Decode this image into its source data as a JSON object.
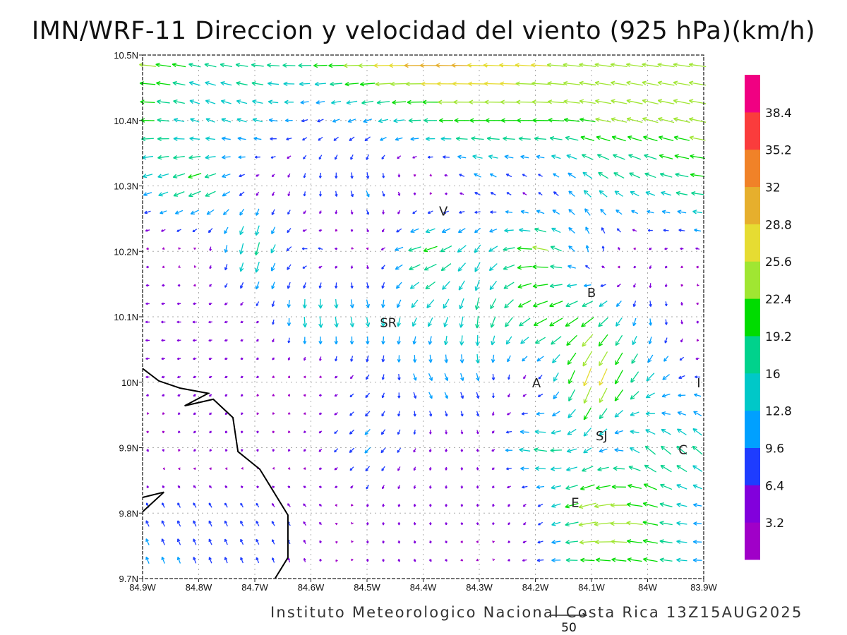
{
  "title": "IMN/WRF-11 Direccion y velocidad del viento (925 hPa)(km/h)",
  "footer": "Instituto Meteorologico Nacional Costa Rica 13Z15AUG2025",
  "chart_data": {
    "type": "vector-field",
    "title": "IMN/WRF-11 Direccion y velocidad del viento (925 hPa)(km/h)",
    "units": "km/h",
    "xlim": [
      -84.9,
      -83.9
    ],
    "ylim": [
      9.7,
      10.5
    ],
    "grid": true,
    "x_ticks": [
      -84.9,
      -84.8,
      -84.7,
      -84.6,
      -84.5,
      -84.4,
      -84.3,
      -84.2,
      -84.1,
      -84.0,
      -83.9
    ],
    "x_tick_labels": [
      "84.9W",
      "84.8W",
      "84.7W",
      "84.6W",
      "84.5W",
      "84.4W",
      "84.3W",
      "84.2W",
      "84.1W",
      "84W",
      "83.9W"
    ],
    "y_ticks": [
      9.7,
      9.8,
      9.9,
      10.0,
      10.1,
      10.2,
      10.3,
      10.4,
      10.5
    ],
    "y_tick_labels": [
      "9.7N",
      "9.8N",
      "9.9N",
      "10N",
      "10.1N",
      "10.2N",
      "10.3N",
      "10.4N",
      "10.5N"
    ],
    "vector_spacing_deg": 0.028,
    "reference_vector": {
      "value": 50,
      "label": "50"
    },
    "colorbar": {
      "placement": "right",
      "bounds": [
        3.2,
        6.4,
        9.6,
        12.8,
        16,
        19.2,
        22.4,
        25.6,
        28.8,
        32,
        35.2,
        38.4
      ],
      "labels": [
        "3.2",
        "6.4",
        "9.6",
        "12.8",
        "16",
        "19.2",
        "22.4",
        "25.6",
        "28.8",
        "32",
        "35.2",
        "38.4"
      ],
      "colors": [
        "#a000c8",
        "#8200dc",
        "#1e3cff",
        "#00a0ff",
        "#00c8c8",
        "#00d28c",
        "#00dc00",
        "#a0e632",
        "#e6dc32",
        "#e6af2d",
        "#f08228",
        "#fa3c3c",
        "#f00082"
      ]
    },
    "wind_grid": {
      "lons": [
        -84.9,
        -84.8,
        -84.7,
        -84.6,
        -84.5,
        -84.4,
        -84.3,
        -84.2,
        -84.1,
        -84.0,
        -83.9
      ],
      "lats": [
        10.5,
        10.4,
        10.3,
        10.2,
        10.1,
        10.0,
        9.9,
        9.8,
        9.7
      ],
      "u": [
        [
          -25,
          -17,
          -18,
          -20,
          -28,
          -32,
          -30,
          -27,
          -24,
          -24,
          -24
        ],
        [
          -20,
          -12,
          -14,
          -8,
          -12,
          -18,
          -22,
          -22,
          -22,
          -22,
          -24
        ],
        [
          -12,
          -20,
          -3,
          0,
          4,
          3,
          -8,
          -2,
          -12,
          -14,
          -20
        ],
        [
          -3,
          1,
          -5,
          -8,
          1,
          -22,
          -8,
          -25,
          0,
          -3,
          -5
        ],
        [
          -6,
          -6,
          -3,
          2,
          3,
          -8,
          -2,
          -20,
          -18,
          2,
          2
        ],
        [
          -5,
          -4,
          -3,
          -3,
          -5,
          6,
          3,
          -3,
          -10,
          -12,
          -8
        ],
        [
          3,
          -3,
          1,
          -3,
          -8,
          -2,
          1,
          -20,
          -10,
          -14,
          -14
        ],
        [
          -4,
          -4,
          -4,
          -4,
          0,
          0,
          0,
          -3,
          -28,
          -22,
          -10
        ],
        [
          -4,
          -3,
          -3,
          0,
          0,
          3,
          3,
          -10,
          -18,
          -20,
          -12
        ]
      ],
      "v": [
        [
          3,
          4,
          2,
          0,
          0,
          0,
          1,
          2,
          3,
          3,
          3
        ],
        [
          0,
          5,
          4,
          -3,
          -4,
          0,
          0,
          0,
          4,
          6,
          5
        ],
        [
          -4,
          -8,
          -3,
          -8,
          -10,
          -2,
          6,
          3,
          10,
          6,
          2
        ],
        [
          0,
          -2,
          -20,
          3,
          -2,
          -6,
          -12,
          4,
          10,
          -3,
          2
        ],
        [
          0,
          0,
          -2,
          -18,
          -14,
          -12,
          -18,
          -10,
          -12,
          -10,
          -3
        ],
        [
          0,
          -2,
          -2,
          2,
          -6,
          -10,
          -10,
          -3,
          -28,
          -12,
          2
        ],
        [
          -4,
          -3,
          -4,
          -3,
          -8,
          -5,
          -4,
          4,
          -8,
          12,
          12
        ],
        [
          8,
          8,
          7,
          5,
          -4,
          -4,
          -4,
          -4,
          -6,
          5,
          0
        ],
        [
          10,
          9,
          8,
          5,
          -4,
          -4,
          0,
          0,
          4,
          3,
          0
        ]
      ]
    },
    "coastline": [
      [
        [
          -84.9,
          10.021
        ],
        [
          -84.871,
          10.002
        ],
        [
          -84.833,
          9.991
        ],
        [
          -84.783,
          9.983
        ],
        [
          -84.825,
          9.964
        ],
        [
          -84.774,
          9.974
        ],
        [
          -84.739,
          9.946
        ],
        [
          -84.73,
          9.894
        ],
        [
          -84.691,
          9.867
        ],
        [
          -84.641,
          9.797
        ],
        [
          -84.641,
          9.732
        ],
        [
          -84.664,
          9.7
        ]
      ],
      [
        [
          -84.9,
          9.824
        ],
        [
          -84.862,
          9.832
        ],
        [
          -84.9,
          9.802
        ]
      ]
    ],
    "annotations": [
      {
        "text": "V",
        "lon": -84.364,
        "lat": 10.262
      },
      {
        "text": "SR",
        "lon": -84.462,
        "lat": 10.092
      },
      {
        "text": "B",
        "lon": -84.1,
        "lat": 10.138
      },
      {
        "text": "A",
        "lon": -84.198,
        "lat": 10.0
      },
      {
        "text": "SJ",
        "lon": -84.082,
        "lat": 9.919
      },
      {
        "text": "C",
        "lon": -83.937,
        "lat": 9.898
      },
      {
        "text": "E",
        "lon": -84.129,
        "lat": 9.817
      },
      {
        "text": "I",
        "lon": -83.909,
        "lat": 10.0
      }
    ]
  }
}
